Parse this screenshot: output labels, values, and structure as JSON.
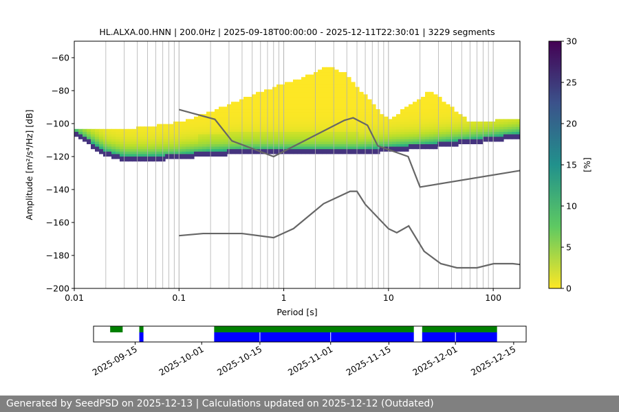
{
  "chart_data": {
    "type": "heatmap",
    "title": "HL.ALXA.00.HNN | 200.0Hz | 2025-09-18T00:00:00 - 2025-12-11T22:30:01 | 3229 segments",
    "xlabel": "Period [s]",
    "ylabel": "Amplitude [m²/s⁴/Hz] [dB]",
    "x_scale": "log",
    "xlim": [
      0.01,
      180
    ],
    "ylim": [
      -200,
      -50
    ],
    "x_tick_labels": [
      "0.01",
      "0.1",
      "1",
      "10",
      "100"
    ],
    "y_ticks": [
      -60,
      -80,
      -100,
      -120,
      -140,
      -160,
      -180,
      -200
    ],
    "colorbar": {
      "label": "[%]",
      "range": [
        0,
        30
      ],
      "ticks": [
        0,
        5,
        10,
        15,
        20,
        25,
        30
      ]
    },
    "psd_mode_centerline": [
      [
        0.01,
        -106
      ],
      [
        0.02,
        -118
      ],
      [
        0.03,
        -121
      ],
      [
        0.05,
        -121
      ],
      [
        0.1,
        -120
      ],
      [
        0.2,
        -118
      ],
      [
        0.4,
        -117
      ],
      [
        0.8,
        -117
      ],
      [
        1.5,
        -117
      ],
      [
        3,
        -117
      ],
      [
        5,
        -117
      ],
      [
        8,
        -116
      ],
      [
        12,
        -115
      ],
      [
        20,
        -114
      ],
      [
        40,
        -112
      ],
      [
        80,
        -110
      ],
      [
        180,
        -107
      ]
    ],
    "psd_upper_envelope": [
      [
        0.01,
        -103
      ],
      [
        0.02,
        -104
      ],
      [
        0.05,
        -102
      ],
      [
        0.1,
        -99
      ],
      [
        0.2,
        -93
      ],
      [
        0.4,
        -85
      ],
      [
        0.8,
        -78
      ],
      [
        1.5,
        -72
      ],
      [
        2.7,
        -65
      ],
      [
        4,
        -70
      ],
      [
        6,
        -83
      ],
      [
        10,
        -98
      ],
      [
        15,
        -90
      ],
      [
        25,
        -80
      ],
      [
        40,
        -90
      ],
      [
        60,
        -99
      ],
      [
        100,
        -98
      ],
      [
        180,
        -97
      ]
    ],
    "nhnm": [
      [
        0.1,
        -91.5
      ],
      [
        0.22,
        -97.4
      ],
      [
        0.32,
        -110.5
      ],
      [
        0.8,
        -120
      ],
      [
        3.8,
        -98
      ],
      [
        4.6,
        -96.5
      ],
      [
        6.3,
        -101
      ],
      [
        7.9,
        -113.5
      ],
      [
        15.4,
        -120
      ],
      [
        20,
        -138.5
      ],
      [
        180,
        -128.5
      ]
    ],
    "nlnm": [
      [
        0.1,
        -168
      ],
      [
        0.17,
        -166.7
      ],
      [
        0.4,
        -166.7
      ],
      [
        0.8,
        -169.2
      ],
      [
        1.24,
        -163.7
      ],
      [
        2.4,
        -148.6
      ],
      [
        4.3,
        -141.1
      ],
      [
        5,
        -141.1
      ],
      [
        6,
        -149
      ],
      [
        10,
        -163.8
      ],
      [
        12,
        -166.2
      ],
      [
        15.6,
        -162.1
      ],
      [
        21.9,
        -177.5
      ],
      [
        31.6,
        -185
      ],
      [
        45,
        -187.5
      ],
      [
        70,
        -187.5
      ],
      [
        101,
        -185
      ],
      [
        154,
        -185
      ],
      [
        180,
        -185.5
      ]
    ],
    "timeline": {
      "tick_labels": [
        "2025-09-15",
        "2025-10-01",
        "2025-10-15",
        "2025-11-01",
        "2025-11-15",
        "2025-12-01",
        "2025-12-15"
      ],
      "range": [
        "2025-09-05",
        "2025-12-18"
      ],
      "data_available": [
        [
          "2025-09-09",
          "2025-09-12"
        ],
        [
          "2025-09-16",
          "2025-09-17"
        ],
        [
          "2025-10-04",
          "2025-11-21"
        ],
        [
          "2025-11-23",
          "2025-12-11"
        ]
      ],
      "psd_computed": [
        [
          "2025-09-16",
          "2025-09-17"
        ],
        [
          "2025-10-04",
          "2025-11-21"
        ],
        [
          "2025-11-23",
          "2025-12-11"
        ]
      ],
      "colors": {
        "data": "#008000",
        "psd": "#0000ff"
      }
    }
  },
  "footer": {
    "text": "Generated by SeedPSD on 2025-12-13 | Calculations updated on 2025-12-12 (Outdated)"
  }
}
